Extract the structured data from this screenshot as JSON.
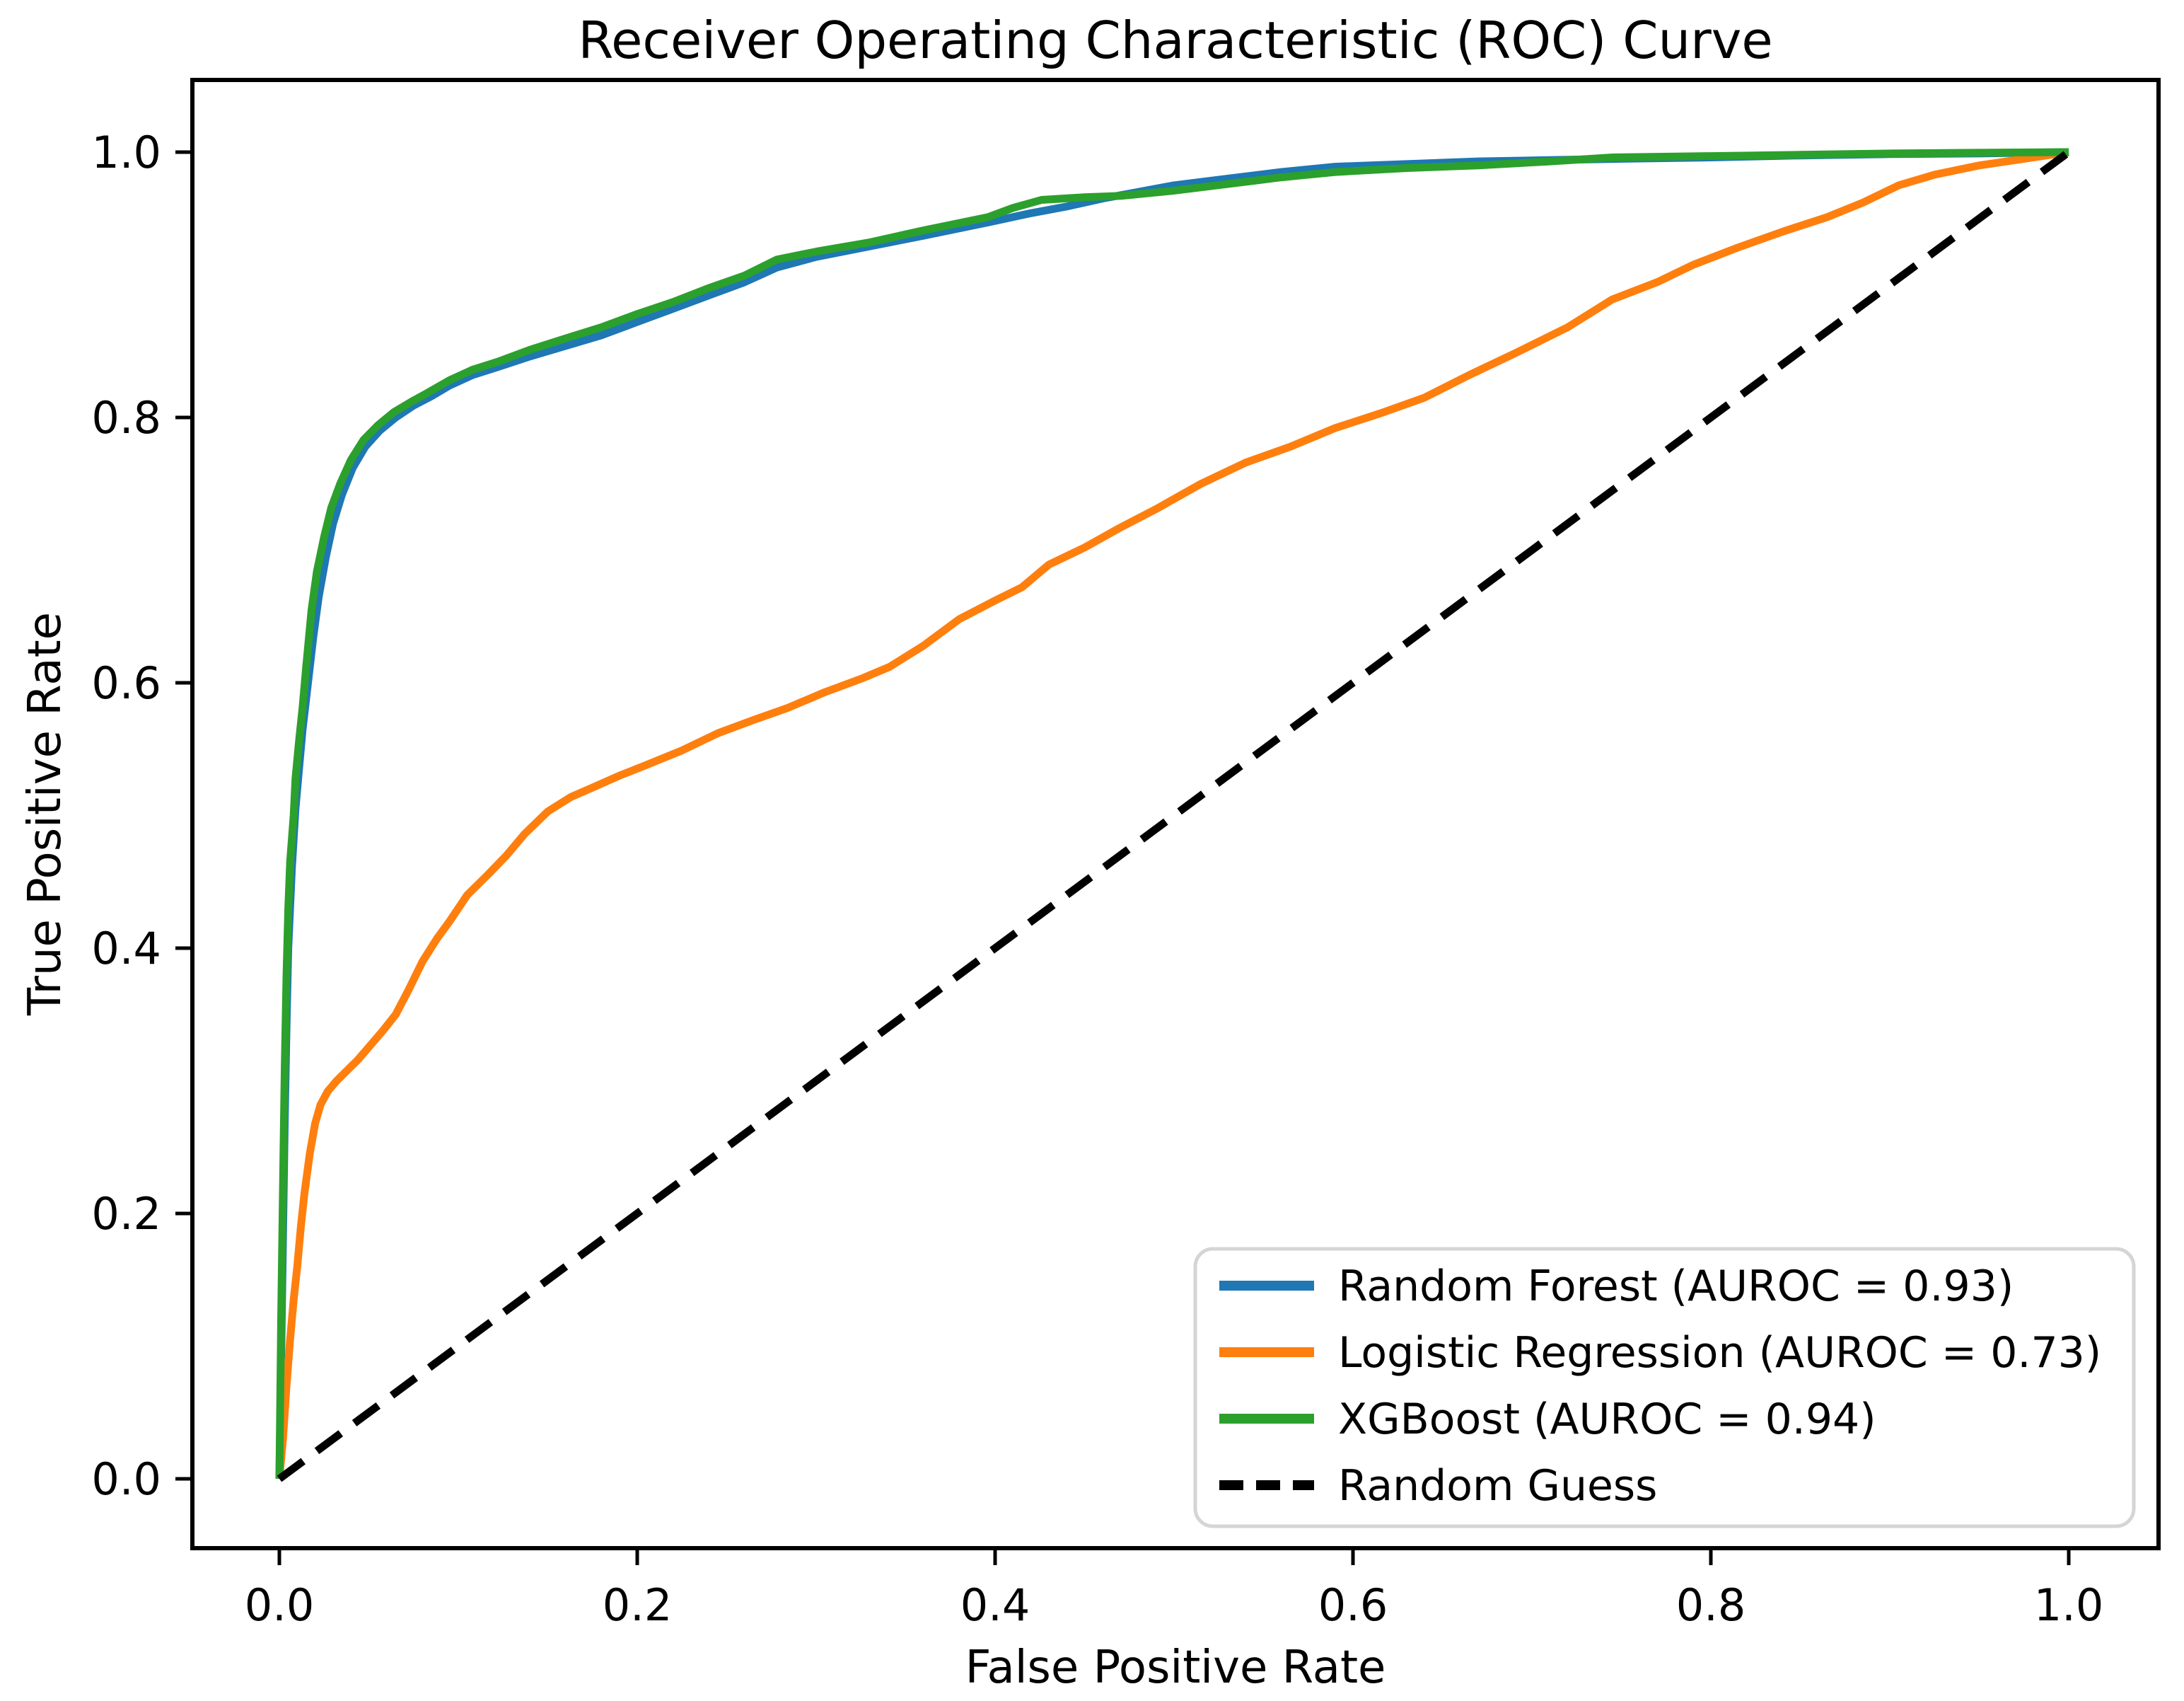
{
  "figure": {
    "title": "Receiver Operating Characteristic (ROC) Curve",
    "xlabel": "False Positive Rate",
    "ylabel": "True Positive Rate",
    "background_color": "#ffffff",
    "spine_color": "#000000",
    "legend_border_color": "#d5d5d5",
    "legend_background_color": "#ffffff"
  },
  "chart_data": {
    "type": "line",
    "title": "Receiver Operating Characteristic (ROC) Curve",
    "xlabel": "False Positive Rate",
    "ylabel": "True Positive Rate",
    "xlim": [
      0.0,
      1.0
    ],
    "ylim": [
      0.0,
      1.0
    ],
    "axes_margin": 0.05,
    "grid": false,
    "legend_position": "lower right",
    "x_ticks": [
      0.0,
      0.2,
      0.4,
      0.6,
      0.8,
      1.0
    ],
    "x_tick_labels": [
      "0.0",
      "0.2",
      "0.4",
      "0.6",
      "0.8",
      "1.0"
    ],
    "y_ticks": [
      0.0,
      0.2,
      0.4,
      0.6,
      0.8,
      1.0
    ],
    "y_tick_labels": [
      "0.0",
      "0.2",
      "0.4",
      "0.6",
      "0.8",
      "1.0"
    ],
    "series": [
      {
        "name": "Random Forest (AUROC = 0.93)",
        "model": "Random Forest",
        "auroc": 0.93,
        "color": "#1f77b4",
        "style": "solid",
        "points": [
          [
            0,
            0
          ],
          [
            0.001,
            0.09
          ],
          [
            0.002,
            0.18
          ],
          [
            0.003,
            0.27
          ],
          [
            0.004,
            0.34
          ],
          [
            0.005,
            0.4
          ],
          [
            0.007,
            0.46
          ],
          [
            0.009,
            0.505
          ],
          [
            0.011,
            0.535
          ],
          [
            0.013,
            0.565
          ],
          [
            0.016,
            0.6
          ],
          [
            0.019,
            0.635
          ],
          [
            0.022,
            0.665
          ],
          [
            0.026,
            0.695
          ],
          [
            0.03,
            0.72
          ],
          [
            0.035,
            0.742
          ],
          [
            0.041,
            0.762
          ],
          [
            0.048,
            0.778
          ],
          [
            0.056,
            0.79
          ],
          [
            0.065,
            0.8
          ],
          [
            0.075,
            0.809
          ],
          [
            0.085,
            0.816
          ],
          [
            0.095,
            0.824
          ],
          [
            0.108,
            0.832
          ],
          [
            0.122,
            0.838
          ],
          [
            0.14,
            0.846
          ],
          [
            0.16,
            0.854
          ],
          [
            0.18,
            0.862
          ],
          [
            0.2,
            0.872
          ],
          [
            0.22,
            0.882
          ],
          [
            0.24,
            0.892
          ],
          [
            0.26,
            0.902
          ],
          [
            0.278,
            0.913
          ],
          [
            0.3,
            0.921
          ],
          [
            0.33,
            0.929
          ],
          [
            0.36,
            0.937
          ],
          [
            0.396,
            0.947
          ],
          [
            0.42,
            0.954
          ],
          [
            0.44,
            0.959
          ],
          [
            0.46,
            0.965
          ],
          [
            0.48,
            0.97
          ],
          [
            0.5,
            0.975
          ],
          [
            0.53,
            0.98
          ],
          [
            0.56,
            0.985
          ],
          [
            0.59,
            0.989
          ],
          [
            0.63,
            0.991
          ],
          [
            0.67,
            0.993
          ],
          [
            0.71,
            0.994
          ],
          [
            0.75,
            0.995
          ],
          [
            0.8,
            0.996
          ],
          [
            0.85,
            0.9975
          ],
          [
            0.9,
            0.9985
          ],
          [
            0.95,
            0.999
          ],
          [
            1,
            1
          ]
        ]
      },
      {
        "name": "Logistic Regression (AUROC = 0.73)",
        "model": "Logistic Regression",
        "auroc": 0.73,
        "color": "#ff7f0e",
        "style": "solid",
        "points": [
          [
            0,
            0
          ],
          [
            0.002,
            0.03
          ],
          [
            0.004,
            0.07
          ],
          [
            0.006,
            0.105
          ],
          [
            0.008,
            0.135
          ],
          [
            0.01,
            0.16
          ],
          [
            0.012,
            0.19
          ],
          [
            0.014,
            0.215
          ],
          [
            0.017,
            0.245
          ],
          [
            0.02,
            0.268
          ],
          [
            0.023,
            0.282
          ],
          [
            0.027,
            0.292
          ],
          [
            0.032,
            0.3
          ],
          [
            0.038,
            0.308
          ],
          [
            0.044,
            0.316
          ],
          [
            0.051,
            0.327
          ],
          [
            0.058,
            0.338
          ],
          [
            0.065,
            0.35
          ],
          [
            0.072,
            0.368
          ],
          [
            0.08,
            0.39
          ],
          [
            0.088,
            0.407
          ],
          [
            0.095,
            0.42
          ],
          [
            0.105,
            0.44
          ],
          [
            0.117,
            0.456
          ],
          [
            0.127,
            0.47
          ],
          [
            0.137,
            0.486
          ],
          [
            0.15,
            0.503
          ],
          [
            0.163,
            0.514
          ],
          [
            0.175,
            0.521
          ],
          [
            0.19,
            0.53
          ],
          [
            0.205,
            0.538
          ],
          [
            0.225,
            0.549
          ],
          [
            0.245,
            0.562
          ],
          [
            0.265,
            0.572
          ],
          [
            0.284,
            0.581
          ],
          [
            0.305,
            0.593
          ],
          [
            0.325,
            0.603
          ],
          [
            0.341,
            0.612
          ],
          [
            0.36,
            0.628
          ],
          [
            0.38,
            0.648
          ],
          [
            0.4,
            0.662
          ],
          [
            0.415,
            0.672
          ],
          [
            0.43,
            0.689
          ],
          [
            0.45,
            0.702
          ],
          [
            0.47,
            0.717
          ],
          [
            0.49,
            0.731
          ],
          [
            0.515,
            0.75
          ],
          [
            0.54,
            0.766
          ],
          [
            0.565,
            0.778
          ],
          [
            0.59,
            0.792
          ],
          [
            0.615,
            0.803
          ],
          [
            0.64,
            0.815
          ],
          [
            0.665,
            0.832
          ],
          [
            0.69,
            0.848
          ],
          [
            0.72,
            0.868
          ],
          [
            0.745,
            0.889
          ],
          [
            0.77,
            0.902
          ],
          [
            0.79,
            0.915
          ],
          [
            0.815,
            0.928
          ],
          [
            0.84,
            0.94
          ],
          [
            0.865,
            0.951
          ],
          [
            0.885,
            0.962
          ],
          [
            0.905,
            0.975
          ],
          [
            0.925,
            0.983
          ],
          [
            0.95,
            0.99
          ],
          [
            0.975,
            0.995
          ],
          [
            1,
            1
          ]
        ]
      },
      {
        "name": "XGBoost (AUROC = 0.94)",
        "model": "XGBoost",
        "auroc": 0.94,
        "color": "#2ca02c",
        "style": "solid",
        "points": [
          [
            0,
            0
          ],
          [
            0.001,
            0.12
          ],
          [
            0.002,
            0.22
          ],
          [
            0.003,
            0.31
          ],
          [
            0.004,
            0.38
          ],
          [
            0.005,
            0.43
          ],
          [
            0.006,
            0.465
          ],
          [
            0.008,
            0.5
          ],
          [
            0.009,
            0.528
          ],
          [
            0.011,
            0.556
          ],
          [
            0.013,
            0.582
          ],
          [
            0.015,
            0.612
          ],
          [
            0.018,
            0.655
          ],
          [
            0.021,
            0.684
          ],
          [
            0.025,
            0.71
          ],
          [
            0.029,
            0.732
          ],
          [
            0.034,
            0.75
          ],
          [
            0.04,
            0.768
          ],
          [
            0.047,
            0.783
          ],
          [
            0.055,
            0.794
          ],
          [
            0.064,
            0.804
          ],
          [
            0.074,
            0.812
          ],
          [
            0.082,
            0.818
          ],
          [
            0.095,
            0.828
          ],
          [
            0.108,
            0.836
          ],
          [
            0.122,
            0.842
          ],
          [
            0.14,
            0.851
          ],
          [
            0.161,
            0.86
          ],
          [
            0.18,
            0.868
          ],
          [
            0.2,
            0.878
          ],
          [
            0.22,
            0.887
          ],
          [
            0.239,
            0.897
          ],
          [
            0.26,
            0.907
          ],
          [
            0.278,
            0.919
          ],
          [
            0.3,
            0.925
          ],
          [
            0.33,
            0.932
          ],
          [
            0.36,
            0.941
          ],
          [
            0.396,
            0.951
          ],
          [
            0.41,
            0.958
          ],
          [
            0.426,
            0.964
          ],
          [
            0.45,
            0.966
          ],
          [
            0.47,
            0.967
          ],
          [
            0.5,
            0.971
          ],
          [
            0.53,
            0.976
          ],
          [
            0.56,
            0.981
          ],
          [
            0.59,
            0.985
          ],
          [
            0.63,
            0.988
          ],
          [
            0.67,
            0.99
          ],
          [
            0.71,
            0.993
          ],
          [
            0.745,
            0.996
          ],
          [
            0.8,
            0.997
          ],
          [
            0.85,
            0.998
          ],
          [
            0.9,
            0.999
          ],
          [
            0.95,
            0.9995
          ],
          [
            1,
            1
          ]
        ]
      },
      {
        "name": "Random Guess",
        "model": "Random Guess",
        "color": "#000000",
        "style": "dashed",
        "points": [
          [
            0,
            0
          ],
          [
            1,
            1
          ]
        ]
      }
    ]
  }
}
